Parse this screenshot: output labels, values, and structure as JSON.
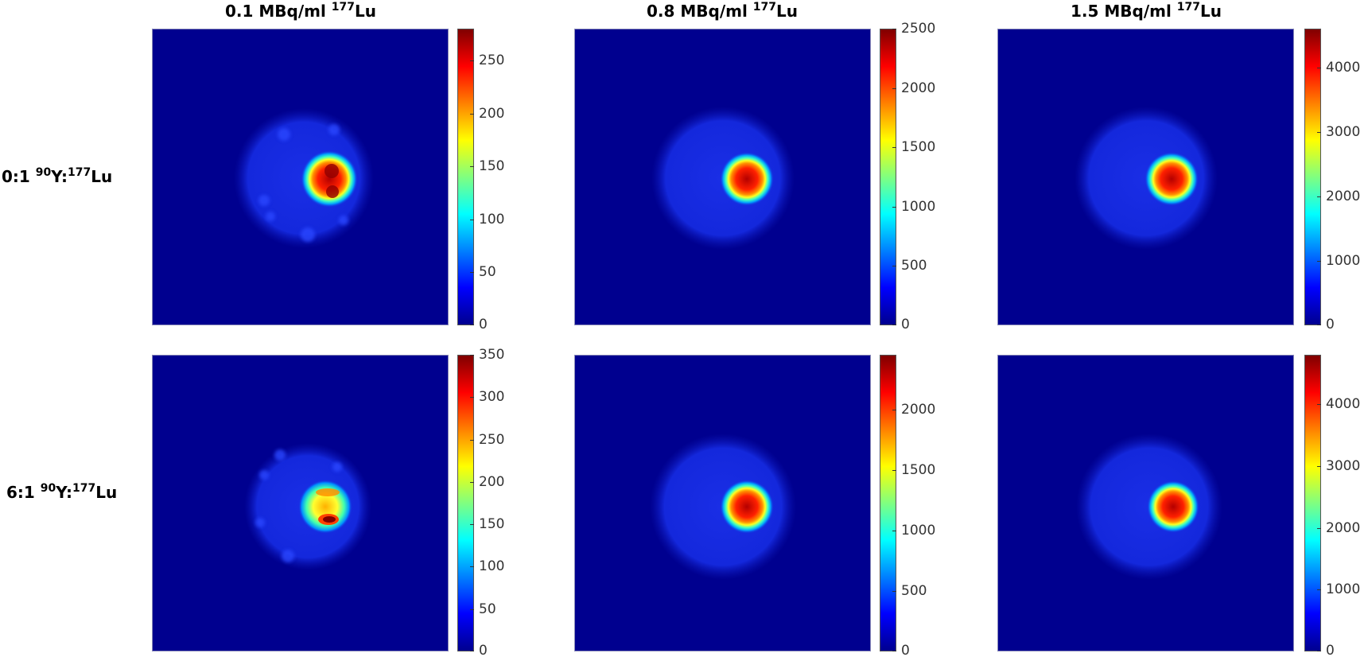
{
  "figure": {
    "columns": [
      {
        "label": "0.1 MBq/ml ",
        "sup": "177",
        "suffix": "Lu"
      },
      {
        "label": "0.8 MBq/ml ",
        "sup": "177",
        "suffix": "Lu"
      },
      {
        "label": "1.5 MBq/ml ",
        "sup": "177",
        "suffix": "Lu"
      }
    ],
    "rows": [
      {
        "prefix": "0:1 ",
        "sup1": "90",
        "mid": "Y:",
        "sup2": "177",
        "suffix": "Lu"
      },
      {
        "prefix": "6:1 ",
        "sup1": "90",
        "mid": "Y:",
        "sup2": "177",
        "suffix": "Lu"
      }
    ],
    "colormap": "jet",
    "colormap_stops": [
      "#00008f",
      "#0000ff",
      "#0080ff",
      "#00ffff",
      "#80ff80",
      "#ffff00",
      "#ff8000",
      "#ff0000",
      "#800000"
    ]
  },
  "chart_data": [
    {
      "type": "heatmap",
      "title": "0.1 MBq/ml 177Lu",
      "row": "0:1 90Y:177Lu",
      "colorbar": {
        "min": 0,
        "max": 280,
        "ticks": [
          0,
          50,
          100,
          150,
          200,
          250
        ]
      },
      "description": "Circular phantom with low background; hot spot right of center reaching ~280",
      "ticks_label": [
        "0",
        "50",
        "100",
        "150",
        "200",
        "250"
      ]
    },
    {
      "type": "heatmap",
      "title": "0.8 MBq/ml 177Lu",
      "row": "0:1 90Y:177Lu",
      "colorbar": {
        "min": 0,
        "max": 2500,
        "ticks": [
          0,
          500,
          1000,
          1500,
          2000,
          2500
        ]
      },
      "description": "Smooth circular phantom; hot spot right of center reaching ~2500",
      "ticks_label": [
        "0",
        "500",
        "1000",
        "1500",
        "2000",
        "2500"
      ]
    },
    {
      "type": "heatmap",
      "title": "1.5 MBq/ml 177Lu",
      "row": "0:1 90Y:177Lu",
      "colorbar": {
        "min": 0,
        "max": 4600,
        "ticks": [
          0,
          1000,
          2000,
          3000,
          4000
        ]
      },
      "description": "Smooth circular phantom; hot spot right of center reaching ~4600",
      "ticks_label": [
        "0",
        "1000",
        "2000",
        "3000",
        "4000"
      ]
    },
    {
      "type": "heatmap",
      "title": "0.1 MBq/ml 177Lu",
      "row": "6:1 90Y:177Lu",
      "colorbar": {
        "min": 0,
        "max": 350,
        "ticks": [
          0,
          50,
          100,
          150,
          200,
          250,
          300,
          350
        ]
      },
      "description": "Noisy circular phantom; split hot spot right of center reaching ~350",
      "ticks_label": [
        "0",
        "50",
        "100",
        "150",
        "200",
        "250",
        "300",
        "350"
      ]
    },
    {
      "type": "heatmap",
      "title": "0.8 MBq/ml 177Lu",
      "row": "6:1 90Y:177Lu",
      "colorbar": {
        "min": 0,
        "max": 2450,
        "ticks": [
          0,
          500,
          1000,
          1500,
          2000
        ]
      },
      "description": "Circular phantom; hot spot right of center reaching ~2450",
      "ticks_label": [
        "0",
        "500",
        "1000",
        "1500",
        "2000"
      ]
    },
    {
      "type": "heatmap",
      "title": "1.5 MBq/ml 177Lu",
      "row": "6:1 90Y:177Lu",
      "colorbar": {
        "min": 0,
        "max": 4800,
        "ticks": [
          0,
          1000,
          2000,
          3000,
          4000
        ]
      },
      "description": "Smooth circular phantom; hot spot right of center reaching ~4800",
      "ticks_label": [
        "0",
        "1000",
        "2000",
        "3000",
        "4000"
      ]
    }
  ]
}
